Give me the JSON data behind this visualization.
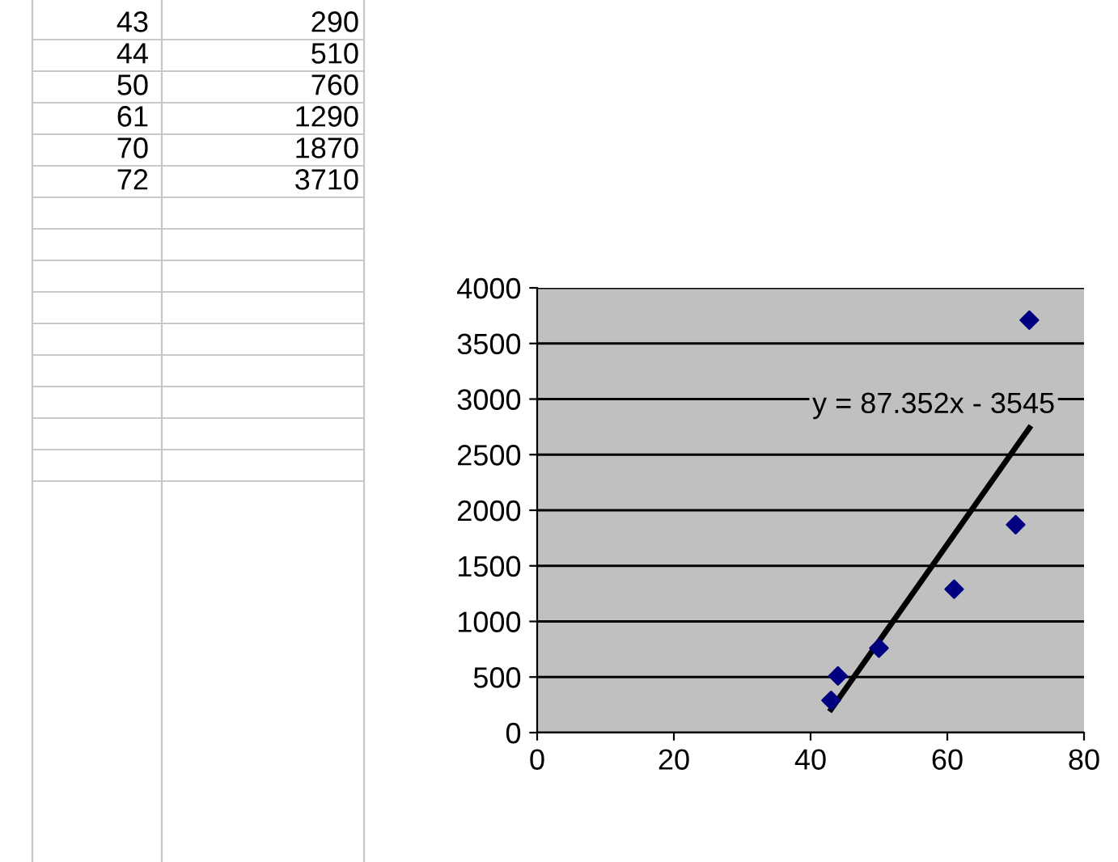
{
  "chart_data": {
    "type": "scatter",
    "x": [
      43,
      44,
      50,
      61,
      70,
      72
    ],
    "series": [
      {
        "color": "#000080",
        "marker": "diamond",
        "values": [
          290,
          510,
          760,
          1290,
          1870,
          3710
        ]
      },
      {
        "type": "line",
        "color": "#000000",
        "marker": "none",
        "line_style": "solid",
        "x": [
          43,
          72
        ],
        "values": [
          210,
          2740
        ]
      }
    ],
    "annotations": [
      "y = 87.352x - 3545",
      "43",
      "290",
      "44",
      "510",
      "50",
      "760",
      "61",
      "1290",
      "70",
      "1870",
      "72",
      "3710"
    ],
    "xlim": [
      0,
      80
    ],
    "xticks": [
      0,
      20,
      40,
      60,
      80
    ],
    "ylim": [
      0,
      4000
    ],
    "yticks": [
      0,
      500,
      1000,
      1500,
      2000,
      2500,
      3000,
      3500,
      4000
    ],
    "grid": "y",
    "legend": false
  }
}
